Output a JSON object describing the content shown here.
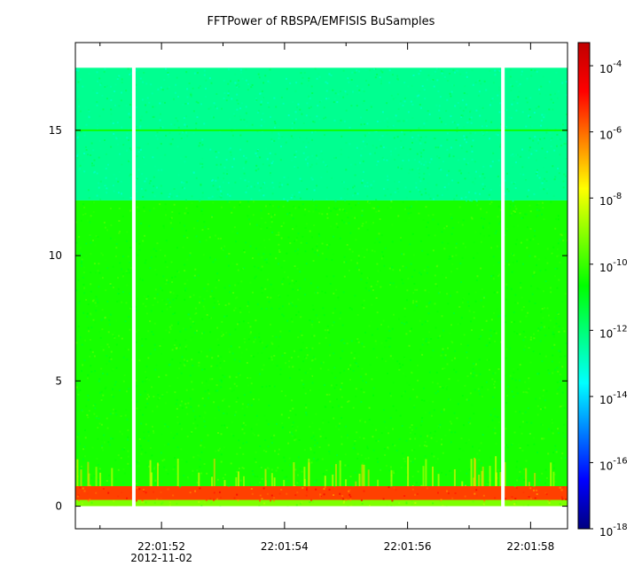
{
  "chart_data": {
    "type": "heatmap",
    "title": "FFTPower of RBSPA/EMFISIS  BuSamples",
    "x": {
      "ticks": [
        {
          "value": 52,
          "label": "22:01:52"
        },
        {
          "value": 54,
          "label": "22:01:54"
        },
        {
          "value": 56,
          "label": "22:01:56"
        },
        {
          "value": 58,
          "label": "22:01:58"
        }
      ],
      "minor_ticks": [
        51,
        53,
        55,
        57
      ],
      "date_label": "2012-11-02",
      "range_seconds": [
        50.6,
        58.6
      ]
    },
    "y": {
      "ticks": [
        0,
        5,
        10,
        15
      ],
      "range": [
        -0.9,
        18.5
      ],
      "data_top": 17.5
    },
    "colorbar": {
      "scale": "log",
      "range_exp": [
        -18,
        -3.3
      ],
      "tick_labels": [
        {
          "base": "10",
          "exp": "-4",
          "value_exp": -4
        },
        {
          "base": "10",
          "exp": "-6",
          "value_exp": -6
        },
        {
          "base": "10",
          "exp": "-8",
          "value_exp": -8
        },
        {
          "base": "10",
          "exp": "-10",
          "value_exp": -10
        },
        {
          "base": "10",
          "exp": "-12",
          "value_exp": -12
        },
        {
          "base": "10",
          "exp": "-14",
          "value_exp": -14
        },
        {
          "base": "10",
          "exp": "-16",
          "value_exp": -16
        },
        {
          "base": "10",
          "exp": "-18",
          "value_exp": -18
        }
      ],
      "colors": [
        "#000080",
        "#0000ff",
        "#0080ff",
        "#00ffff",
        "#00ff80",
        "#00ff00",
        "#80ff00",
        "#ffff00",
        "#ff8000",
        "#ff0000",
        "#c00000"
      ]
    },
    "gaps_seconds": [
      51.55,
      57.55
    ],
    "bands": [
      {
        "y_from": 12.2,
        "y_to": 17.5,
        "level_exp": -12.3
      },
      {
        "y_from": 0.8,
        "y_to": 12.2,
        "level_exp": -10.4
      },
      {
        "y_from": 0.25,
        "y_to": 0.8,
        "level_exp": -5.5
      },
      {
        "y_from": 0.0,
        "y_to": 0.25,
        "level_exp": -9.2
      }
    ],
    "lines": [
      {
        "y": 15.0,
        "level_exp": -10.5
      }
    ]
  }
}
